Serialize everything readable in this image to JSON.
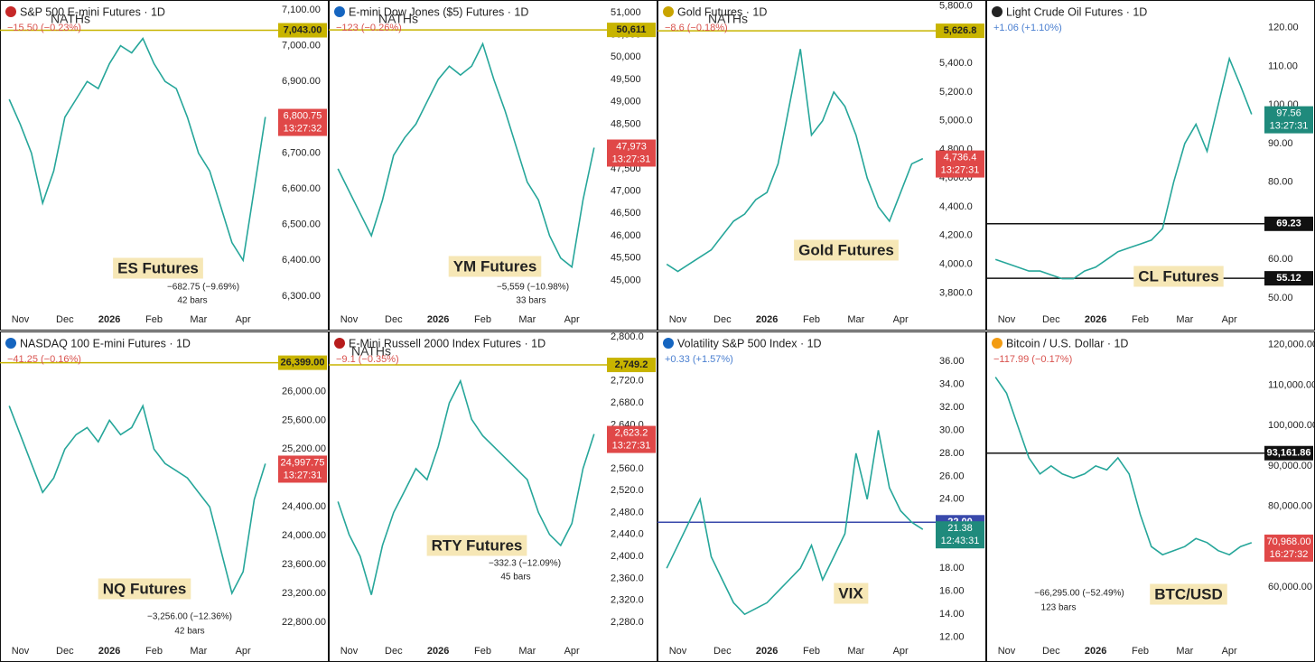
{
  "chart_data": [
    {
      "type": "line",
      "title": "S&P 500 E-mini Futures · 1D",
      "change": "−15.50 (−0.23%)",
      "change_color": "#d9534f",
      "note": "NATHs",
      "label": "ES Futures",
      "measure": "−682.75 (−9.69%)",
      "bars": "42 bars",
      "color": "#26a69a",
      "categories": [
        null,
        "Nov",
        null,
        null,
        null,
        "Dec",
        null,
        null,
        null,
        "2026",
        null,
        null,
        null,
        "Feb",
        null,
        null,
        null,
        "Mar",
        null,
        null,
        null,
        "Apr",
        null,
        null
      ],
      "values": [
        6850,
        6780,
        6700,
        6560,
        6650,
        6800,
        6850,
        6900,
        6880,
        6950,
        7000,
        6980,
        7020,
        6950,
        6900,
        6880,
        6800,
        6700,
        6650,
        6550,
        6450,
        6400,
        6600,
        6800.75
      ],
      "ylim": [
        6257,
        7115
      ],
      "yticks": [
        {
          "value": 6300,
          "label": "6,300.00"
        },
        {
          "value": 6400,
          "label": "6,400.00"
        },
        {
          "value": 6500,
          "label": "6,500.00"
        },
        {
          "value": 6600,
          "label": "6,600.00"
        },
        {
          "value": 6700,
          "label": "6,700.00"
        },
        {
          "value": 6800,
          "label": "6,800.00"
        },
        {
          "value": 6900,
          "label": "6,900.00"
        },
        {
          "value": 7000,
          "label": "7,000.00"
        },
        {
          "value": 7100,
          "label": "7,100.00"
        }
      ],
      "levels": [
        {
          "value": 7043,
          "label": "7,043.00",
          "color": "#c8b400"
        }
      ],
      "price": {
        "value": 6800.75,
        "label": "6,800.75",
        "time": "13:27:32",
        "color": "#e04848"
      }
    },
    {
      "type": "line",
      "title": "E-mini Dow Jones ($5) Futures · 1D",
      "change": "−123 (−0.26%)",
      "change_color": "#d9534f",
      "note": "NATHs",
      "label": "YM Futures",
      "measure": "−5,559 (−10.98%)",
      "bars": "33 bars",
      "color": "#26a69a",
      "categories": [
        null,
        "Nov",
        null,
        null,
        null,
        "Dec",
        null,
        null,
        null,
        "2026",
        null,
        null,
        null,
        "Feb",
        null,
        null,
        null,
        "Mar",
        null,
        null,
        null,
        "Apr",
        null,
        null
      ],
      "values": [
        47500,
        47000,
        46500,
        46000,
        46800,
        47800,
        48200,
        48500,
        49000,
        49500,
        49800,
        49600,
        49800,
        50300,
        49500,
        48800,
        48000,
        47200,
        46800,
        46000,
        45500,
        45300,
        46800,
        47973
      ],
      "ylim": [
        44300,
        51180
      ],
      "yticks": [
        {
          "value": 45000,
          "label": "45,000"
        },
        {
          "value": 45500,
          "label": "45,500"
        },
        {
          "value": 46000,
          "label": "46,000"
        },
        {
          "value": 46500,
          "label": "46,500"
        },
        {
          "value": 47000,
          "label": "47,000"
        },
        {
          "value": 47500,
          "label": "47,500"
        },
        {
          "value": 48000,
          "label": "48,000"
        },
        {
          "value": 48500,
          "label": "48,500"
        },
        {
          "value": 49000,
          "label": "49,000"
        },
        {
          "value": 49500,
          "label": "49,500"
        },
        {
          "value": 50000,
          "label": "50,000"
        },
        {
          "value": 50500,
          "label": "50,500"
        },
        {
          "value": 51000,
          "label": "51,000"
        }
      ],
      "levels": [
        {
          "value": 50611,
          "label": "50,611",
          "color": "#c8b400"
        }
      ],
      "price": {
        "value": 47973,
        "label": "47,973",
        "time": "13:27:31",
        "color": "#e04848"
      }
    },
    {
      "type": "line",
      "title": "Gold Futures · 1D",
      "change": "−8.6 (−0.18%)",
      "change_color": "#d9534f",
      "note": "NATHs",
      "label": "Gold Futures",
      "color": "#26a69a",
      "categories": [
        null,
        "Nov",
        null,
        null,
        null,
        "Dec",
        null,
        null,
        null,
        "2026",
        null,
        null,
        null,
        "Feb",
        null,
        null,
        null,
        "Mar",
        null,
        null,
        null,
        "Apr",
        null,
        null
      ],
      "values": [
        4000,
        3950,
        4000,
        4050,
        4100,
        4200,
        4300,
        4350,
        4450,
        4500,
        4700,
        5100,
        5500,
        4900,
        5000,
        5200,
        5100,
        4900,
        4600,
        4400,
        4300,
        4500,
        4700,
        4736.4
      ],
      "ylim": [
        3670,
        5810
      ],
      "yticks": [
        {
          "value": 3800,
          "label": "3,800.0"
        },
        {
          "value": 4000,
          "label": "4,000.0"
        },
        {
          "value": 4200,
          "label": "4,200.0"
        },
        {
          "value": 4400,
          "label": "4,400.0"
        },
        {
          "value": 4600,
          "label": "4,600.0"
        },
        {
          "value": 4800,
          "label": "4,800.0"
        },
        {
          "value": 5000,
          "label": "5,000.0"
        },
        {
          "value": 5200,
          "label": "5,200.0"
        },
        {
          "value": 5400,
          "label": "5,400.0"
        },
        {
          "value": 5800,
          "label": "5,800.0"
        }
      ],
      "levels": [
        {
          "value": 5626.8,
          "label": "5,626.8",
          "color": "#c8b400"
        }
      ],
      "price": {
        "value": 4736.4,
        "label": "4,736.4",
        "time": "13:27:31",
        "color": "#e04848"
      }
    },
    {
      "type": "line",
      "title": "Light Crude Oil Futures · 1D",
      "change": "+1.06 (+1.10%)",
      "change_color": "#4a7fd0",
      "label": "CL Futures",
      "color": "#26a69a",
      "categories": [
        null,
        "Nov",
        null,
        null,
        null,
        "Dec",
        null,
        null,
        null,
        "2026",
        null,
        null,
        null,
        "Feb",
        null,
        null,
        null,
        "Mar",
        null,
        null,
        null,
        "Apr",
        null,
        null
      ],
      "values": [
        60,
        59,
        58,
        57,
        57,
        56,
        55,
        55,
        57,
        58,
        60,
        62,
        63,
        64,
        65,
        68,
        80,
        90,
        95,
        88,
        100,
        112,
        105,
        97.56
      ],
      "ylim": [
        46.5,
        126
      ],
      "yticks": [
        {
          "value": 50,
          "label": "50.00"
        },
        {
          "value": 60,
          "label": "60.00"
        },
        {
          "value": 70,
          "label": "70.00"
        },
        {
          "value": 80,
          "label": "80.00"
        },
        {
          "value": 90,
          "label": "90.00"
        },
        {
          "value": 100,
          "label": "100.00"
        },
        {
          "value": 110,
          "label": "110.00"
        },
        {
          "value": 120,
          "label": "120.00"
        }
      ],
      "levels": [
        {
          "value": 69.23,
          "label": "69.23",
          "color": "#111111"
        },
        {
          "value": 55.12,
          "label": "55.12",
          "color": "#111111"
        }
      ],
      "price": {
        "value": 97.56,
        "label": "97.56",
        "time": "13:27:31",
        "color": "#1f8a7c"
      }
    },
    {
      "type": "line",
      "title": "NASDAQ 100 E-mini Futures · 1D",
      "change": "−41.25 (−0.16%)",
      "change_color": "#d9534f",
      "label": "NQ Futures",
      "measure": "−3,256.00 (−12.36%)",
      "bars": "42 bars",
      "color": "#26a69a",
      "categories": [
        null,
        "Nov",
        null,
        null,
        null,
        "Dec",
        null,
        null,
        null,
        "2026",
        null,
        null,
        null,
        "Feb",
        null,
        null,
        null,
        "Mar",
        null,
        null,
        null,
        "Apr",
        null,
        null
      ],
      "values": [
        25800,
        25400,
        25000,
        24600,
        24800,
        25200,
        25400,
        25500,
        25300,
        25600,
        25400,
        25500,
        25800,
        25200,
        25000,
        24900,
        24800,
        24600,
        24400,
        23800,
        23200,
        23500,
        24500,
        24997.75
      ],
      "ylim": [
        22510,
        26770
      ],
      "yticks": [
        {
          "value": 22800,
          "label": "22,800.00"
        },
        {
          "value": 23200,
          "label": "23,200.00"
        },
        {
          "value": 23600,
          "label": "23,600.00"
        },
        {
          "value": 24000,
          "label": "24,000.00"
        },
        {
          "value": 24400,
          "label": "24,400.00"
        },
        {
          "value": 24800,
          "label": "24,800.00"
        },
        {
          "value": 25200,
          "label": "25,200.00"
        },
        {
          "value": 25600,
          "label": "25,600.00"
        },
        {
          "value": 26000,
          "label": "26,000.00"
        }
      ],
      "levels": [
        {
          "value": 26399,
          "label": "26,399.00",
          "color": "#c8b400"
        }
      ],
      "price": {
        "value": 24997.75,
        "label": "24,997.75",
        "time": "13:27:31",
        "color": "#e04848"
      }
    },
    {
      "type": "line",
      "title": "E-Mini Russell 2000 Index Futures · 1D",
      "change": "−9.1 (−0.35%)",
      "change_color": "#d9534f",
      "note": "NATHs",
      "label": "RTY Futures",
      "measure": "−332.3 (−12.09%)",
      "bars": "45 bars",
      "color": "#26a69a",
      "categories": [
        null,
        "Nov",
        null,
        null,
        null,
        "Dec",
        null,
        null,
        null,
        "2026",
        null,
        null,
        null,
        "Feb",
        null,
        null,
        null,
        "Mar",
        null,
        null,
        null,
        "Apr",
        null,
        null
      ],
      "values": [
        2500,
        2440,
        2400,
        2330,
        2420,
        2480,
        2520,
        2560,
        2540,
        2600,
        2680,
        2720,
        2650,
        2620,
        2600,
        2580,
        2560,
        2540,
        2480,
        2440,
        2420,
        2460,
        2560,
        2623.2
      ],
      "ylim": [
        2242,
        2802
      ],
      "yticks": [
        {
          "value": 2280,
          "label": "2,280.0"
        },
        {
          "value": 2320,
          "label": "2,320.0"
        },
        {
          "value": 2360,
          "label": "2,360.0"
        },
        {
          "value": 2400,
          "label": "2,400.0"
        },
        {
          "value": 2440,
          "label": "2,440.0"
        },
        {
          "value": 2480,
          "label": "2,480.0"
        },
        {
          "value": 2520,
          "label": "2,520.0"
        },
        {
          "value": 2560,
          "label": "2,560.0"
        },
        {
          "value": 2600,
          "label": "2,600.0"
        },
        {
          "value": 2640,
          "label": "2,640.0"
        },
        {
          "value": 2680,
          "label": "2,680.0"
        },
        {
          "value": 2720,
          "label": "2,720.0"
        },
        {
          "value": 2800,
          "label": "2,800.0"
        }
      ],
      "levels": [
        {
          "value": 2749.2,
          "label": "2,749.2",
          "color": "#c8b400"
        }
      ],
      "price": {
        "value": 2623.2,
        "label": "2,623.2",
        "time": "13:27:31",
        "color": "#e04848"
      }
    },
    {
      "type": "line",
      "title": "Volatility S&P 500 Index · 1D",
      "change": "+0.33 (+1.57%)",
      "change_color": "#4a7fd0",
      "label": "VIX",
      "color": "#26a69a",
      "categories": [
        null,
        "Nov",
        null,
        null,
        null,
        "Dec",
        null,
        null,
        null,
        "2026",
        null,
        null,
        null,
        "Feb",
        null,
        null,
        null,
        "Mar",
        null,
        null,
        null,
        "Apr",
        null,
        null
      ],
      "values": [
        18,
        20,
        22,
        24,
        19,
        17,
        15,
        14,
        14.5,
        15,
        16,
        17,
        18,
        20,
        17,
        19,
        21,
        28,
        24,
        30,
        25,
        23,
        22,
        21.38
      ],
      "ylim": [
        11.5,
        38.2
      ],
      "yticks": [
        {
          "value": 12,
          "label": "12.00"
        },
        {
          "value": 14,
          "label": "14.00"
        },
        {
          "value": 16,
          "label": "16.00"
        },
        {
          "value": 18,
          "label": "18.00"
        },
        {
          "value": 20,
          "label": "20.00"
        },
        {
          "value": 24,
          "label": "24.00"
        },
        {
          "value": 26,
          "label": "26.00"
        },
        {
          "value": 28,
          "label": "28.00"
        },
        {
          "value": 30,
          "label": "30.00"
        },
        {
          "value": 32,
          "label": "32.00"
        },
        {
          "value": 34,
          "label": "34.00"
        },
        {
          "value": 36,
          "label": "36.00"
        }
      ],
      "levels": [
        {
          "value": 22,
          "label": "22.00",
          "color": "#3949ab"
        }
      ],
      "price": {
        "value": 21.38,
        "label": "21.38",
        "time": "12:43:31",
        "color": "#1f8a7c"
      }
    },
    {
      "type": "line",
      "title": "Bitcoin / U.S. Dollar · 1D",
      "change": "−117.99 (−0.17%)",
      "change_color": "#d9534f",
      "label": "BTC/USD",
      "measure": "−66,295.00 (−52.49%)",
      "bars": "123 bars",
      "color": "#26a69a",
      "categories": [
        null,
        "Nov",
        null,
        null,
        null,
        "Dec",
        null,
        null,
        null,
        "2026",
        null,
        null,
        null,
        "Feb",
        null,
        null,
        null,
        "Mar",
        null,
        null,
        null,
        "Apr",
        null,
        null
      ],
      "values": [
        112000,
        108000,
        100000,
        92000,
        88000,
        90000,
        88000,
        87000,
        88000,
        90000,
        89000,
        92000,
        88000,
        78000,
        70000,
        68000,
        69000,
        70000,
        72000,
        71000,
        69000,
        68000,
        70000,
        70968
      ],
      "ylim": [
        46100,
        122200
      ],
      "yticks": [
        {
          "value": 60000,
          "label": "60,000.00"
        },
        {
          "value": 70000,
          "label": "70,000.00"
        },
        {
          "value": 80000,
          "label": "80,000.00"
        },
        {
          "value": 90000,
          "label": "90,000.00"
        },
        {
          "value": 100000,
          "label": "100,000.00"
        },
        {
          "value": 110000,
          "label": "110,000.00"
        },
        {
          "value": 120000,
          "label": "120,000.00"
        }
      ],
      "levels": [
        {
          "value": 93161.86,
          "label": "93,161.86",
          "color": "#111111"
        }
      ],
      "price": {
        "value": 70968,
        "label": "70,968.00",
        "time": "16:27:32",
        "color": "#e04848"
      }
    }
  ]
}
